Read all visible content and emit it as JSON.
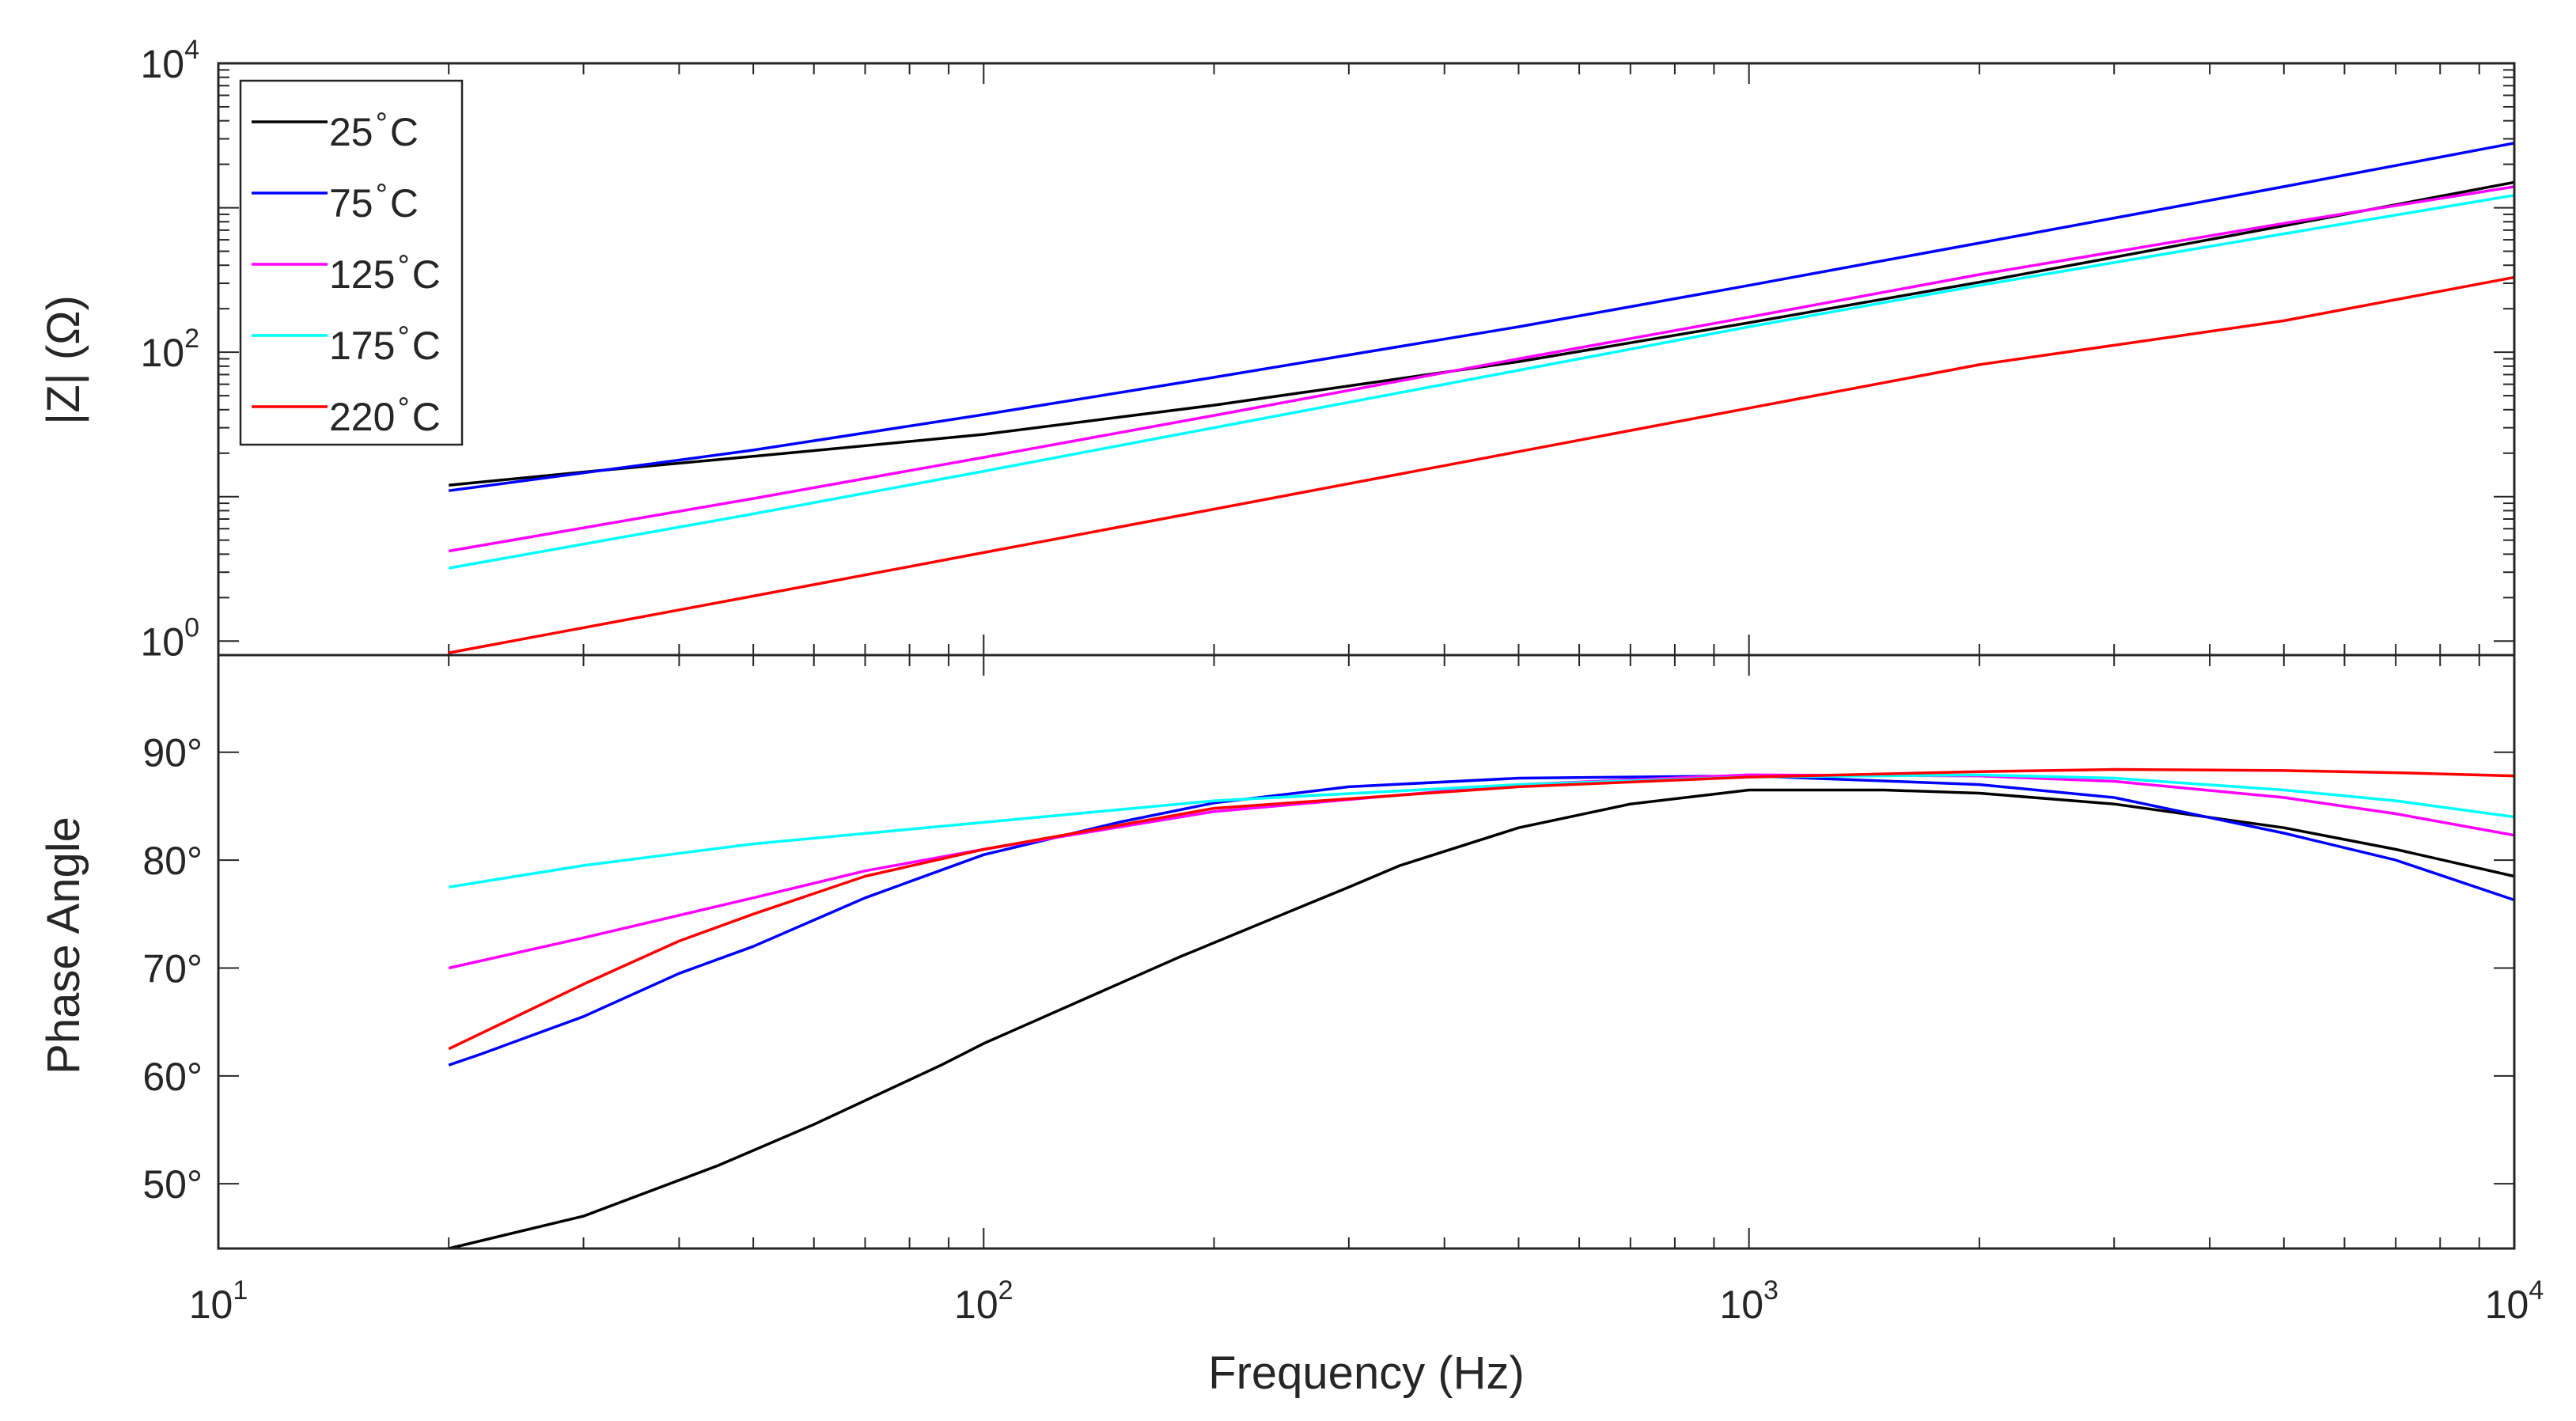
{
  "chart_data": [
    {
      "type": "line",
      "name": "impedance-magnitude",
      "ylabel": "|Z| (Ω)",
      "xscale": "log",
      "yscale": "log",
      "xlim": [
        10,
        10000
      ],
      "ylim": [
        0.8,
        10000
      ],
      "y_ticks": [
        {
          "base": "10",
          "exp": "0",
          "value": 1
        },
        {
          "base": "10",
          "exp": "2",
          "value": 100
        },
        {
          "base": "10",
          "exp": "4",
          "value": 10000
        }
      ],
      "legend": {
        "placement": "top-left"
      },
      "series": [
        {
          "name": "25°C",
          "label": "25",
          "sup": "∘",
          "unit": "C",
          "color": "#000000",
          "x": [
            20,
            30,
            50,
            100,
            200,
            500,
            1000,
            2000,
            5000,
            10000
          ],
          "y": [
            12,
            14.8,
            19,
            27,
            43,
            86,
            160,
            305,
            750,
            1500
          ]
        },
        {
          "name": "75°C",
          "label": "75",
          "sup": "∘",
          "unit": "C",
          "color": "#0000ff",
          "x": [
            20,
            30,
            50,
            100,
            200,
            500,
            1000,
            2000,
            5000,
            10000
          ],
          "y": [
            11,
            14.6,
            21,
            37,
            67,
            150,
            290,
            570,
            1400,
            2800
          ]
        },
        {
          "name": "125°C",
          "label": "125",
          "sup": "∘",
          "unit": "C",
          "color": "#ff00ff",
          "x": [
            20,
            50,
            100,
            200,
            500,
            1000,
            2000,
            5000,
            10000
          ],
          "y": [
            4.2,
            9.7,
            18.7,
            36.5,
            90,
            175,
            345,
            780,
            1400
          ]
        },
        {
          "name": "175°C",
          "label": "175",
          "sup": "∘",
          "unit": "C",
          "color": "#00ffff",
          "x": [
            20,
            50,
            100,
            200,
            500,
            1000,
            2000,
            5000,
            10000
          ],
          "y": [
            3.2,
            7.6,
            15,
            30,
            75,
            150,
            290,
            660,
            1220
          ]
        },
        {
          "name": "220°C",
          "label": "220",
          "sup": "∘",
          "unit": "C",
          "color": "#ff0000",
          "x": [
            20,
            50,
            100,
            200,
            500,
            1000,
            2000,
            5000,
            10000
          ],
          "y": [
            0.83,
            2.05,
            4.1,
            8.2,
            20.5,
            41,
            82,
            165,
            330
          ]
        }
      ]
    },
    {
      "type": "line",
      "name": "phase-angle",
      "xlabel": "Frequency (Hz)",
      "ylabel": "Phase Angle",
      "xscale": "log",
      "xlim": [
        10,
        10000
      ],
      "ylim": [
        44,
        99
      ],
      "x_ticks": [
        {
          "base": "10",
          "exp": "1",
          "value": 10
        },
        {
          "base": "10",
          "exp": "2",
          "value": 100
        },
        {
          "base": "10",
          "exp": "3",
          "value": 1000
        },
        {
          "base": "10",
          "exp": "4",
          "value": 10000
        }
      ],
      "y_ticks": [
        {
          "label": "50°",
          "value": 50
        },
        {
          "label": "60°",
          "value": 60
        },
        {
          "label": "70°",
          "value": 70
        },
        {
          "label": "80°",
          "value": 80
        },
        {
          "label": "90°",
          "value": 90
        }
      ],
      "series": [
        {
          "name": "25°C",
          "color": "#000000",
          "x": [
            20,
            30,
            45,
            60,
            88,
            100,
            180,
            300,
            350,
            500,
            700,
            1000,
            1200,
            1500,
            2000,
            3000,
            5000,
            7000,
            10000
          ],
          "y": [
            42.5,
            47,
            51.7,
            55.5,
            61,
            63,
            71,
            77.5,
            79.5,
            83,
            85.2,
            86.5,
            86.5,
            86.5,
            86.2,
            85.2,
            83,
            81,
            78.5
          ]
        },
        {
          "name": "75°C",
          "color": "#0000ff",
          "x": [
            20,
            22,
            30,
            40,
            50,
            70,
            100,
            150,
            200,
            300,
            500,
            1000,
            2000,
            3000,
            5000,
            7000,
            10000
          ],
          "y": [
            61,
            62,
            65.5,
            69.5,
            72,
            76.5,
            80.5,
            83.5,
            85.3,
            86.8,
            87.6,
            87.8,
            87,
            85.8,
            82.5,
            80,
            76.3
          ]
        },
        {
          "name": "125°C",
          "color": "#ff00ff",
          "x": [
            20,
            30,
            50,
            70,
            100,
            200,
            500,
            1000,
            2000,
            3000,
            5000,
            7000,
            10000
          ],
          "y": [
            70,
            72.8,
            76.5,
            79,
            81,
            84.5,
            87,
            87.9,
            87.8,
            87.3,
            85.8,
            84.3,
            82.3
          ]
        },
        {
          "name": "175°C",
          "color": "#00ffff",
          "x": [
            20,
            30,
            50,
            100,
            200,
            500,
            1000,
            2000,
            3000,
            5000,
            7000,
            10000
          ],
          "y": [
            77.5,
            79.5,
            81.5,
            83.5,
            85.5,
            87,
            87.7,
            87.9,
            87.6,
            86.5,
            85.5,
            84
          ]
        },
        {
          "name": "220°C",
          "color": "#ff0000",
          "x": [
            20,
            30,
            40,
            50,
            70,
            100,
            200,
            500,
            1000,
            2000,
            3000,
            5000,
            7000,
            10000
          ],
          "y": [
            62.5,
            68.5,
            72.5,
            75,
            78.5,
            81,
            84.8,
            86.8,
            87.7,
            88.2,
            88.4,
            88.3,
            88.1,
            87.8
          ]
        }
      ]
    }
  ]
}
